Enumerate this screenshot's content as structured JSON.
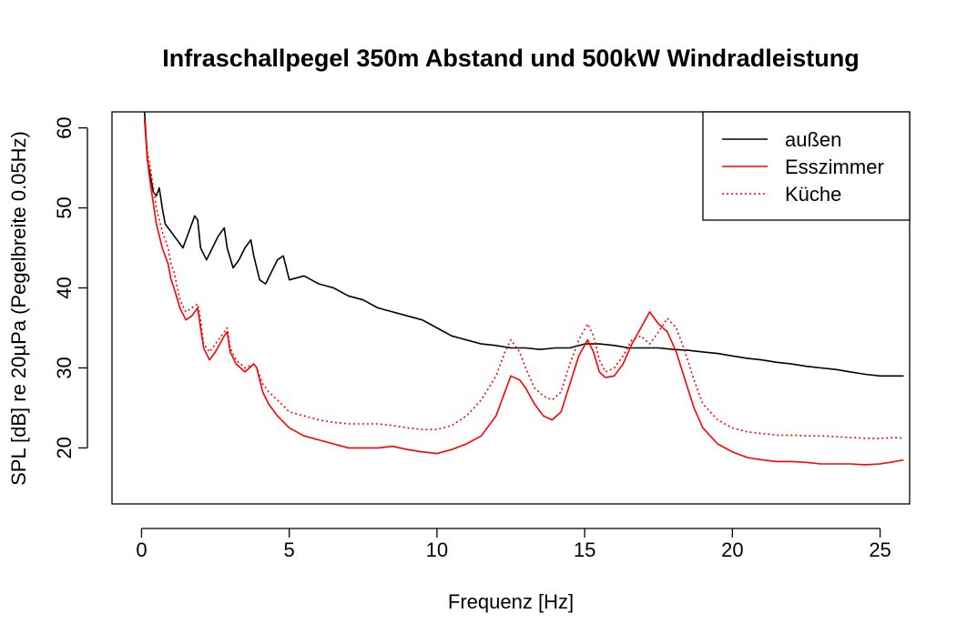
{
  "chart_data": {
    "type": "line",
    "title": "Infraschallpegel 350m Abstand und 500kW Windradleistung",
    "xlabel": "Frequenz [Hz]",
    "ylabel": "SPL [dB] re 20µPa (Pegelbreite 0.05Hz)",
    "xlim": [
      -1,
      26
    ],
    "ylim": [
      13,
      62
    ],
    "xticks": [
      0,
      5,
      10,
      15,
      20,
      25
    ],
    "yticks": [
      20,
      30,
      40,
      50,
      60
    ],
    "grid": false,
    "legend_position": "top-right",
    "series": [
      {
        "name": "außen",
        "color": "#000000",
        "dash": "solid",
        "x": [
          0.1,
          0.2,
          0.3,
          0.4,
          0.5,
          0.6,
          0.7,
          0.8,
          0.9,
          1.0,
          1.2,
          1.4,
          1.6,
          1.8,
          1.9,
          2.0,
          2.2,
          2.4,
          2.6,
          2.8,
          2.9,
          3.1,
          3.3,
          3.5,
          3.7,
          3.8,
          4.0,
          4.2,
          4.4,
          4.6,
          4.8,
          5.0,
          5.5,
          6.0,
          6.5,
          7.0,
          7.5,
          8.0,
          8.5,
          9.0,
          9.5,
          10.0,
          10.5,
          11.0,
          11.5,
          12.0,
          12.5,
          13.0,
          13.5,
          14.0,
          14.5,
          15.0,
          15.5,
          16.0,
          16.5,
          17.0,
          17.5,
          18.0,
          18.5,
          19.0,
          19.5,
          20.0,
          20.5,
          21.0,
          21.5,
          22.0,
          22.5,
          23.0,
          23.5,
          24.0,
          24.5,
          25.0,
          25.5,
          25.8
        ],
        "y": [
          62,
          56,
          54,
          52,
          51.5,
          52.5,
          50,
          48,
          47.5,
          47,
          46,
          45,
          47,
          49,
          48.5,
          45,
          43.5,
          45,
          46.5,
          47.5,
          45,
          42.5,
          43.5,
          45,
          46,
          44,
          41,
          40.5,
          42,
          43.5,
          44,
          41,
          41.5,
          40.5,
          40,
          39,
          38.5,
          37.5,
          37,
          36.5,
          36,
          35,
          34,
          33.5,
          33,
          32.8,
          32.5,
          32.5,
          32.3,
          32.5,
          32.5,
          33,
          33,
          32.8,
          32.5,
          32.5,
          32.5,
          32.3,
          32.2,
          32,
          31.8,
          31.5,
          31.2,
          31,
          30.7,
          30.5,
          30.2,
          30,
          29.8,
          29.5,
          29.2,
          29,
          29,
          29
        ]
      },
      {
        "name": "Esszimmer",
        "color": "#ff0000",
        "dash": "solid",
        "x": [
          0.1,
          0.2,
          0.3,
          0.5,
          0.7,
          0.9,
          1.0,
          1.1,
          1.3,
          1.5,
          1.7,
          1.9,
          2.0,
          2.1,
          2.3,
          2.5,
          2.8,
          2.9,
          3.0,
          3.2,
          3.5,
          3.8,
          3.9,
          4.1,
          4.3,
          4.6,
          5.0,
          5.5,
          6.0,
          6.5,
          7.0,
          7.5,
          8.0,
          8.5,
          9.0,
          9.5,
          10.0,
          10.5,
          11.0,
          11.5,
          12.0,
          12.3,
          12.5,
          12.8,
          13.0,
          13.3,
          13.6,
          13.9,
          14.2,
          14.5,
          14.8,
          15.1,
          15.3,
          15.5,
          15.7,
          16.0,
          16.3,
          16.6,
          16.9,
          17.2,
          17.5,
          17.8,
          18.1,
          18.4,
          18.7,
          19.0,
          19.5,
          20.0,
          20.5,
          21.0,
          21.5,
          22.0,
          22.5,
          23.0,
          23.5,
          24.0,
          24.5,
          25.0,
          25.5,
          25.8
        ],
        "y": [
          61,
          56,
          53,
          48,
          45,
          43,
          41,
          40,
          37.5,
          36,
          36.5,
          37.5,
          35,
          32.5,
          31,
          32,
          34,
          34.5,
          32,
          30.5,
          29.5,
          30.5,
          30,
          27,
          25.5,
          24,
          22.5,
          21.5,
          21,
          20.5,
          20,
          20,
          20,
          20.2,
          19.8,
          19.5,
          19.3,
          19.8,
          20.5,
          21.5,
          24,
          27,
          29,
          28.5,
          27.5,
          25.5,
          24,
          23.5,
          24.5,
          28,
          31.5,
          33.5,
          32,
          29.5,
          28.8,
          29,
          30.5,
          33,
          35,
          37,
          35.5,
          34.5,
          32,
          28.5,
          25,
          22.5,
          20.5,
          19.5,
          18.8,
          18.5,
          18.3,
          18.3,
          18.2,
          18,
          18,
          18,
          17.9,
          18,
          18.3,
          18.5
        ]
      },
      {
        "name": "Küche",
        "color": "#ff0000",
        "dash": "dotted",
        "x": [
          0.1,
          0.2,
          0.3,
          0.5,
          0.7,
          0.9,
          1.0,
          1.1,
          1.3,
          1.5,
          1.7,
          1.9,
          2.0,
          2.1,
          2.3,
          2.5,
          2.8,
          2.9,
          3.0,
          3.2,
          3.5,
          3.8,
          3.9,
          4.1,
          4.3,
          4.6,
          5.0,
          5.5,
          6.0,
          6.5,
          7.0,
          7.5,
          8.0,
          8.5,
          9.0,
          9.5,
          10.0,
          10.5,
          11.0,
          11.5,
          12.0,
          12.3,
          12.5,
          12.8,
          13.0,
          13.3,
          13.6,
          13.9,
          14.2,
          14.5,
          14.8,
          15.1,
          15.3,
          15.5,
          15.7,
          16.0,
          16.3,
          16.6,
          16.9,
          17.2,
          17.5,
          17.8,
          18.1,
          18.4,
          18.7,
          19.0,
          19.5,
          20.0,
          20.5,
          21.0,
          21.5,
          22.0,
          22.5,
          23.0,
          23.5,
          24.0,
          24.5,
          25.0,
          25.5,
          25.8
        ],
        "y": [
          61,
          57,
          55,
          50,
          47,
          45,
          43,
          42,
          38.5,
          37,
          37.5,
          38,
          36,
          33,
          32,
          33,
          34.5,
          35,
          32.5,
          31,
          30,
          30.5,
          30,
          28,
          27,
          26,
          24.5,
          24,
          23.5,
          23.2,
          23,
          23,
          23,
          22.8,
          22.5,
          22.3,
          22.3,
          22.8,
          24,
          26,
          29,
          32,
          33.5,
          32,
          30,
          27.5,
          26.5,
          26,
          27,
          30.5,
          33.5,
          35.5,
          34,
          31,
          29.5,
          30,
          31.5,
          33.5,
          34,
          33,
          34.5,
          36.2,
          35,
          32,
          28.5,
          25.5,
          23.5,
          22.5,
          22,
          21.8,
          21.6,
          21.6,
          21.5,
          21.5,
          21.4,
          21.3,
          21.2,
          21.2,
          21.3,
          21.2
        ]
      }
    ]
  }
}
